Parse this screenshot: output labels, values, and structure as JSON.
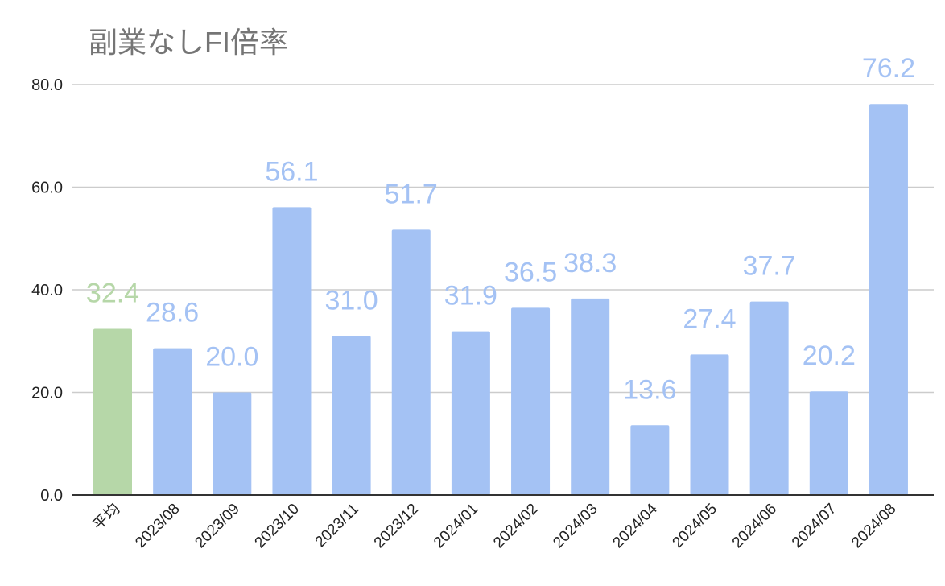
{
  "chart_data": {
    "type": "bar",
    "title": "副業なしFI倍率",
    "xlabel": "",
    "ylabel": "",
    "categories": [
      "平均",
      "2023/08",
      "2023/09",
      "2023/10",
      "2023/11",
      "2023/12",
      "2024/01",
      "2024/02",
      "2024/03",
      "2024/04",
      "2024/05",
      "2024/06",
      "2024/07",
      "2024/08"
    ],
    "values": [
      32.4,
      28.6,
      20.0,
      56.1,
      31.0,
      51.7,
      31.9,
      36.5,
      38.3,
      13.6,
      27.4,
      37.7,
      20.2,
      76.2
    ],
    "data_labels": [
      "32.4",
      "28.6",
      "20.0",
      "56.1",
      "31.0",
      "51.7",
      "31.9",
      "36.5",
      "38.3",
      "13.6",
      "27.4",
      "37.7",
      "20.2",
      "76.2"
    ],
    "yticks": [
      "0.0",
      "20.0",
      "40.0",
      "60.0",
      "80.0"
    ],
    "ytick_values": [
      0,
      20,
      40,
      60,
      80
    ],
    "ylim": [
      0,
      80
    ],
    "grid": true,
    "legend": "none",
    "colors": {
      "average_bar": "#b6d7a8",
      "month_bar": "#a4c2f4",
      "gridline": "#cccccc",
      "axis": "#333333",
      "title": "#757575"
    }
  }
}
